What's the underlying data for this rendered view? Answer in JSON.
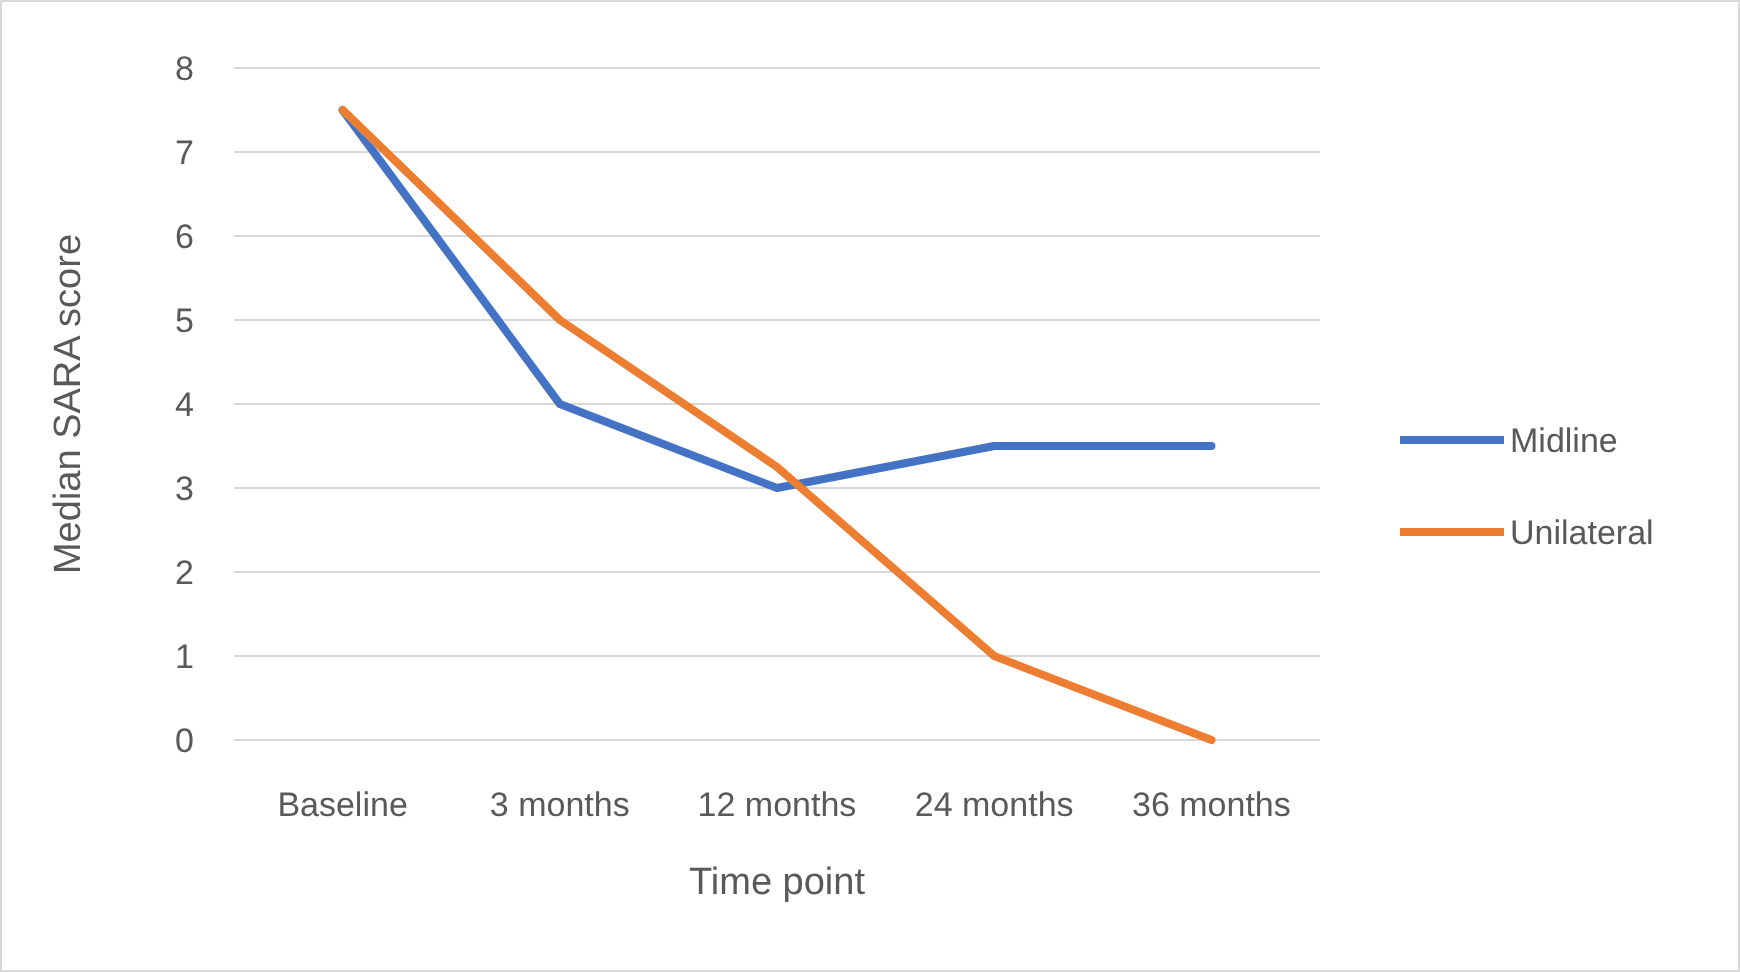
{
  "chart_data": {
    "type": "line",
    "xlabel": "Time point",
    "ylabel": "Median SARA score",
    "categories": [
      "Baseline",
      "3 months",
      "12 months",
      "24 months",
      "36 months"
    ],
    "series": [
      {
        "name": "Midline",
        "color": "#4472c4",
        "values": [
          7.5,
          4,
          3,
          3.5,
          3.5
        ]
      },
      {
        "name": "Unilateral",
        "color": "#ed7d31",
        "values": [
          7.5,
          5,
          3.25,
          1,
          0
        ]
      }
    ],
    "ylim": [
      0,
      8
    ],
    "yticks": [
      0,
      1,
      2,
      3,
      4,
      5,
      6,
      7,
      8
    ],
    "grid": "y",
    "legend": "right",
    "marker": "none",
    "line_style": "solid"
  }
}
